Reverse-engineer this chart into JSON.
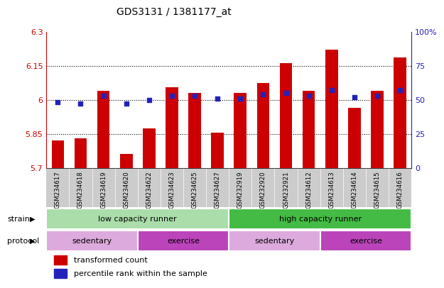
{
  "title": "GDS3131 / 1381177_at",
  "samples": [
    "GSM234617",
    "GSM234618",
    "GSM234619",
    "GSM234620",
    "GSM234622",
    "GSM234623",
    "GSM234625",
    "GSM234627",
    "GSM232919",
    "GSM232920",
    "GSM232921",
    "GSM234612",
    "GSM234613",
    "GSM234614",
    "GSM234615",
    "GSM234616"
  ],
  "transformed_count": [
    5.82,
    5.83,
    6.04,
    5.76,
    5.875,
    6.055,
    6.03,
    5.855,
    6.03,
    6.075,
    6.16,
    6.04,
    6.22,
    5.965,
    6.04,
    6.185
  ],
  "percentile_rank": [
    48,
    47,
    53,
    47,
    50,
    53,
    53,
    51,
    51,
    54,
    55,
    53,
    57,
    52,
    53,
    57
  ],
  "y_min": 5.7,
  "y_max": 6.3,
  "y_ticks": [
    5.7,
    5.85,
    6.0,
    6.15,
    6.3
  ],
  "y_tick_labels": [
    "5.7",
    "5.85",
    "6",
    "6.15",
    "6.3"
  ],
  "right_y_ticks": [
    0,
    25,
    50,
    75,
    100
  ],
  "right_y_labels": [
    "0",
    "25",
    "50",
    "75",
    "100%"
  ],
  "bar_color": "#cc0000",
  "dot_color": "#2222bb",
  "bg_color": "#ffffff",
  "strain_groups": [
    {
      "label": "low capacity runner",
      "start": 0,
      "end": 8,
      "color": "#aaddaa"
    },
    {
      "label": "high capacity runner",
      "start": 8,
      "end": 16,
      "color": "#44bb44"
    }
  ],
  "protocol_groups": [
    {
      "label": "sedentary",
      "start": 0,
      "end": 4,
      "color": "#ddaadd"
    },
    {
      "label": "exercise",
      "start": 4,
      "end": 8,
      "color": "#bb44bb"
    },
    {
      "label": "sedentary",
      "start": 8,
      "end": 12,
      "color": "#ddaadd"
    },
    {
      "label": "exercise",
      "start": 12,
      "end": 16,
      "color": "#bb44bb"
    }
  ]
}
